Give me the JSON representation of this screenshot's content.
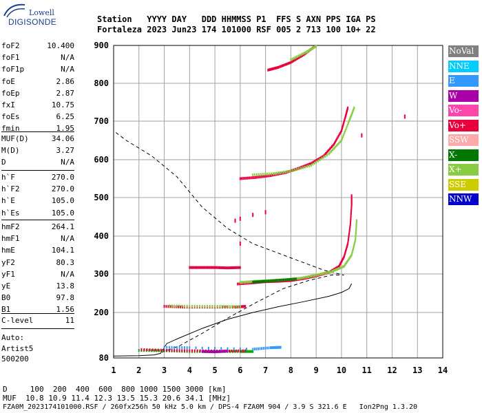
{
  "logo": {
    "top": "Lowell",
    "bottom": "DIGISONDE"
  },
  "header": {
    "row1": "Station   YYYY DAY   DDD HHMMSS P1  FFS S AXN PPS IGA PS",
    "row2": "Fortaleza 2023 Jun23 174 101000 RSF 005 2 713 100 10+ 22"
  },
  "params_group1": [
    {
      "label": "foF2",
      "value": "10.400"
    },
    {
      "label": "foF1",
      "value": "N/A"
    },
    {
      "label": "foF1p",
      "value": "N/A"
    },
    {
      "label": "foE",
      "value": "2.86"
    },
    {
      "label": "foEp",
      "value": "2.87"
    },
    {
      "label": "fxI",
      "value": "10.75"
    },
    {
      "label": "foEs",
      "value": "6.25"
    },
    {
      "label": "fmin",
      "value": "1.95"
    }
  ],
  "params_group2": [
    {
      "label": "MUF(D)",
      "value": "34.06"
    },
    {
      "label": "M(D)",
      "value": "3.27"
    },
    {
      "label": "D",
      "value": "N/A"
    }
  ],
  "params_group3": [
    {
      "label": "h`F",
      "value": "270.0"
    },
    {
      "label": "h`F2",
      "value": "270.0"
    },
    {
      "label": "h`E",
      "value": "105.0"
    },
    {
      "label": "h`Es",
      "value": "105.0"
    }
  ],
  "params_group4": [
    {
      "label": "hmF2",
      "value": "264.1"
    },
    {
      "label": "hmF1",
      "value": "N/A"
    },
    {
      "label": "hmE",
      "value": "104.1"
    },
    {
      "label": "yF2",
      "value": "80.3"
    },
    {
      "label": "yF1",
      "value": "N/A"
    },
    {
      "label": "yE",
      "value": "13.8"
    },
    {
      "label": "B0",
      "value": "97.8"
    },
    {
      "label": "B1",
      "value": "1.56"
    }
  ],
  "params_group5": [
    {
      "label": "C-level",
      "value": "11"
    }
  ],
  "auto": {
    "line1": "Auto:",
    "line2": "Artist5",
    "line3": "500200"
  },
  "legend": [
    {
      "label": "NoVal",
      "bg": "#808080",
      "fg": "#ffffff"
    },
    {
      "label": "NNE",
      "bg": "#00ccff",
      "fg": "#ffffff"
    },
    {
      "label": "E",
      "bg": "#3399ff",
      "fg": "#ffffff"
    },
    {
      "label": "W",
      "bg": "#aa00aa",
      "fg": "#ffffff"
    },
    {
      "label": "Vo-",
      "bg": "#ff44aa",
      "fg": "#ffffff"
    },
    {
      "label": "Vo+",
      "bg": "#e8003d",
      "fg": "#ffffff"
    },
    {
      "label": "SSW",
      "bg": "#ffaaaa",
      "fg": "#ffffff"
    },
    {
      "label": "X-",
      "bg": "#007700",
      "fg": "#ffffff"
    },
    {
      "label": "X+",
      "bg": "#88cc44",
      "fg": "#ffffff"
    },
    {
      "label": "SSE",
      "bg": "#cccc00",
      "fg": "#ffffff"
    },
    {
      "label": "NNW",
      "bg": "#0000cc",
      "fg": "#ffffff"
    }
  ],
  "footer": {
    "d_row": "D     100  200  400  600  800 1000 1500 3000 [km]",
    "muf_row": "MUF  10.8 10.9 11.4 12.3 13.5 15.3 20.6 34.1 [MHz]",
    "info_row": "FZA0M_2023174101000.RSF / 260fx256h 50 kHz 5.0 km / DPS-4 FZA0M 904 / 3.9 S 321.6 E   Ion2Png 1.3.20"
  },
  "chart_data": {
    "type": "scatter",
    "x_axis": {
      "range": [
        1,
        14
      ],
      "ticks": [
        1,
        2,
        3,
        4,
        5,
        6,
        7,
        8,
        9,
        10,
        11,
        12,
        13,
        14
      ]
    },
    "y_axis": {
      "range": [
        80,
        900
      ],
      "ticks": [
        80,
        200,
        300,
        400,
        500,
        600,
        700,
        800,
        900
      ]
    },
    "grid": true,
    "profile": [
      [
        1,
        85
      ],
      [
        2,
        86
      ],
      [
        2.6,
        88
      ],
      [
        2.85,
        92
      ],
      [
        3.1,
        118
      ],
      [
        3.5,
        130
      ],
      [
        4.5,
        158
      ],
      [
        5.5,
        182
      ],
      [
        6.5,
        200
      ],
      [
        7.5,
        215
      ],
      [
        8.5,
        228
      ],
      [
        9.5,
        242
      ],
      [
        10.0,
        252
      ],
      [
        10.3,
        262
      ],
      [
        10.4,
        275
      ]
    ],
    "profile_dashed": [
      [
        2.9,
        95
      ],
      [
        3.6,
        112
      ],
      [
        4.5,
        145
      ],
      [
        5.5,
        185
      ],
      [
        6.6,
        225
      ],
      [
        7.7,
        262
      ],
      [
        8.7,
        283
      ],
      [
        9.6,
        297
      ],
      [
        10.1,
        297
      ],
      [
        9.3,
        310
      ],
      [
        8.5,
        330
      ],
      [
        7.5,
        355
      ],
      [
        6.5,
        380
      ],
      [
        5.5,
        420
      ],
      [
        4.5,
        475
      ],
      [
        3.5,
        555
      ],
      [
        2.5,
        610
      ],
      [
        1.5,
        650
      ],
      [
        1,
        675
      ]
    ],
    "traces": [
      {
        "name": "E-layer",
        "color": "#00aa00",
        "points": [
          [
            2.0,
            100
          ],
          [
            3.0,
            99
          ],
          [
            4.0,
            97
          ],
          [
            5.0,
            97
          ],
          [
            6.0,
            97
          ],
          [
            6.5,
            97
          ]
        ]
      },
      {
        "name": "E-layer",
        "color": "#e8003d",
        "points": [
          [
            2.1,
            102
          ],
          [
            3.2,
            100
          ],
          [
            4.2,
            99
          ],
          [
            5.3,
            98
          ],
          [
            6.2,
            99
          ]
        ]
      },
      {
        "name": "E-layer",
        "color": "#aa00aa",
        "points": [
          [
            4.5,
            97
          ],
          [
            5.0,
            96
          ],
          [
            5.5,
            98
          ]
        ]
      },
      {
        "name": "E-layer",
        "color": "#3399ff",
        "points": [
          [
            3.0,
            108
          ],
          [
            4.0,
            107
          ],
          [
            6.5,
            103
          ],
          [
            7.2,
            107
          ],
          [
            7.6,
            108
          ]
        ]
      },
      {
        "name": "Es",
        "color": "#e8003d",
        "points": [
          [
            3.0,
            216
          ],
          [
            3.8,
            214
          ],
          [
            4.8,
            214
          ],
          [
            5.8,
            214
          ],
          [
            6.2,
            216
          ]
        ]
      },
      {
        "name": "Es",
        "color": "#88cc44",
        "points": [
          [
            3.2,
            217
          ],
          [
            4.2,
            216
          ],
          [
            5.2,
            216
          ],
          [
            6.0,
            215
          ]
        ]
      },
      {
        "name": "spread",
        "color": "#e8003d",
        "points": [
          [
            4.0,
            317
          ],
          [
            4.5,
            317
          ],
          [
            5.0,
            317
          ],
          [
            5.5,
            316
          ],
          [
            6.0,
            317
          ]
        ]
      },
      {
        "name": "F-trace",
        "color": "#e8003d",
        "points": [
          [
            5.9,
            274
          ],
          [
            6.5,
            277
          ],
          [
            7.0,
            280
          ],
          [
            7.5,
            281
          ],
          [
            8.0,
            283
          ],
          [
            8.5,
            288
          ],
          [
            9.0,
            295
          ],
          [
            9.5,
            304
          ],
          [
            9.9,
            320
          ],
          [
            10.1,
            345
          ],
          [
            10.25,
            380
          ],
          [
            10.35,
            430
          ],
          [
            10.4,
            480
          ],
          [
            10.4,
            505
          ]
        ]
      },
      {
        "name": "F-trace",
        "color": "#88cc44",
        "points": [
          [
            6.0,
            278
          ],
          [
            6.6,
            281
          ],
          [
            7.2,
            283
          ],
          [
            7.8,
            285
          ],
          [
            8.4,
            289
          ],
          [
            9.0,
            297
          ],
          [
            9.6,
            306
          ],
          [
            10.1,
            320
          ],
          [
            10.4,
            350
          ],
          [
            10.55,
            390
          ],
          [
            10.6,
            440
          ]
        ]
      },
      {
        "name": "F-trace",
        "color": "#007700",
        "points": [
          [
            6.5,
            279
          ],
          [
            7.0,
            281
          ],
          [
            7.6,
            284
          ],
          [
            8.2,
            287
          ]
        ]
      },
      {
        "name": "second-hop",
        "color": "#e8003d",
        "points": [
          [
            6.0,
            550
          ],
          [
            6.6,
            553
          ],
          [
            7.2,
            558
          ],
          [
            7.8,
            566
          ],
          [
            8.3,
            577
          ],
          [
            8.8,
            590
          ],
          [
            9.3,
            610
          ],
          [
            9.7,
            640
          ],
          [
            10.0,
            675
          ],
          [
            10.15,
            710
          ],
          [
            10.25,
            735
          ]
        ]
      },
      {
        "name": "second-hop",
        "color": "#88cc44",
        "points": [
          [
            6.5,
            560
          ],
          [
            7.3,
            563
          ],
          [
            8.0,
            570
          ],
          [
            8.8,
            585
          ],
          [
            9.5,
            615
          ],
          [
            10.0,
            650
          ],
          [
            10.3,
            700
          ],
          [
            10.5,
            735
          ]
        ]
      },
      {
        "name": "third-hop",
        "color": "#e8003d",
        "points": [
          [
            7.1,
            835
          ],
          [
            7.5,
            842
          ],
          [
            8.0,
            855
          ],
          [
            8.5,
            875
          ],
          [
            8.9,
            895
          ]
        ]
      },
      {
        "name": "third-hop",
        "color": "#88cc44",
        "points": [
          [
            8.0,
            862
          ],
          [
            8.6,
            882
          ],
          [
            9.0,
            898
          ]
        ]
      },
      {
        "name": "misc",
        "color": "#e8003d",
        "points": [
          [
            5.8,
            440
          ],
          [
            6.0,
            445
          ],
          [
            6.5,
            455
          ],
          [
            7.0,
            462
          ],
          [
            6.0,
            380
          ],
          [
            10.8,
            663
          ],
          [
            12.5,
            712
          ]
        ]
      }
    ]
  }
}
